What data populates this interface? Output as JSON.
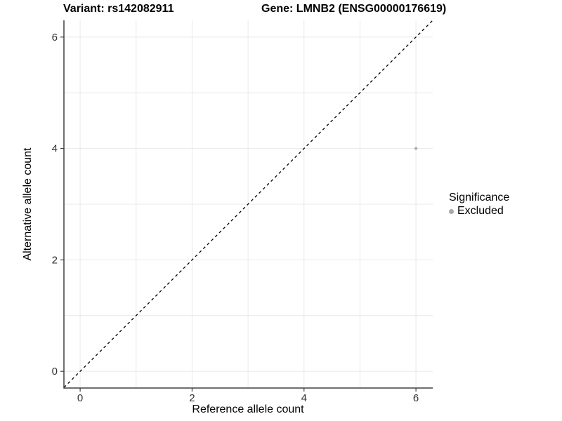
{
  "chart_data": {
    "type": "scatter",
    "titles": {
      "left": "Variant: rs142082911",
      "right": "Gene: LMNB2 (ENSG00000176619)"
    },
    "xlabel": "Reference allele count",
    "ylabel": "Alternative allele count",
    "xlim": [
      -0.29,
      6.3
    ],
    "ylim": [
      -0.3,
      6.3
    ],
    "x_ticks": [
      0,
      2,
      4,
      6
    ],
    "y_ticks": [
      0,
      2,
      4,
      6
    ],
    "grid_values": [
      0,
      1,
      2,
      3,
      4,
      5,
      6
    ],
    "grid": true,
    "identity_line": {
      "style": "dashed",
      "color": "#000000",
      "from": -0.29,
      "to": 6.3
    },
    "series": [
      {
        "name": "Excluded",
        "color": "#a8a8a8",
        "points": [
          {
            "x": 6,
            "y": 4
          }
        ]
      }
    ],
    "legend": {
      "title": "Significance",
      "position": "right",
      "items": [
        {
          "label": "Excluded",
          "color": "#a8a8a8"
        }
      ]
    }
  },
  "colors": {
    "grid": "#e8e8e8",
    "axis": "#404040",
    "tick_text": "#333333",
    "point": "#a8a8a8"
  }
}
